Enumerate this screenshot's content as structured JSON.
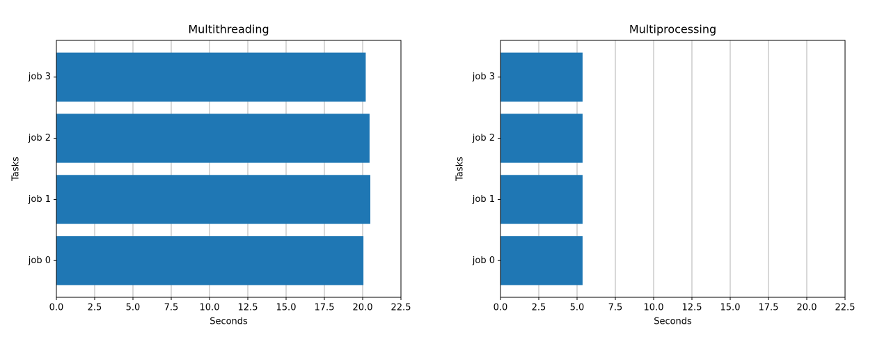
{
  "chart_data": [
    {
      "type": "barh",
      "title": "Multithreading",
      "xlabel": "Seconds",
      "ylabel": "Tasks",
      "categories": [
        "job 0",
        "job 1",
        "job 2",
        "job 3"
      ],
      "values": [
        20.05,
        20.5,
        20.45,
        20.2
      ],
      "color": "#1f77b4",
      "xlim": [
        0,
        22.5
      ],
      "xticks": [
        {
          "value": 0,
          "label": "0.0"
        },
        2.5,
        {
          "value": 5,
          "label": "5.0"
        },
        7.5,
        {
          "value": 10,
          "label": "10.0"
        },
        12.5,
        {
          "value": 15,
          "label": "15.0"
        },
        17.5,
        {
          "value": 20,
          "label": "20.0"
        },
        22.5
      ],
      "grid": true
    },
    {
      "type": "barh",
      "title": "Multiprocessing",
      "xlabel": "Seconds",
      "ylabel": "Tasks",
      "categories": [
        "job 0",
        "job 1",
        "job 2",
        "job 3"
      ],
      "values": [
        5.36,
        5.36,
        5.36,
        5.36
      ],
      "color": "#1f77b4",
      "xlim": [
        0,
        22.5
      ],
      "xticks": [
        {
          "value": 0,
          "label": "0.0"
        },
        2.5,
        {
          "value": 5,
          "label": "5.0"
        },
        7.5,
        {
          "value": 10,
          "label": "10.0"
        },
        12.5,
        {
          "value": 15,
          "label": "15.0"
        },
        17.5,
        {
          "value": 20,
          "label": "20.0"
        },
        22.5
      ],
      "grid": true
    }
  ]
}
